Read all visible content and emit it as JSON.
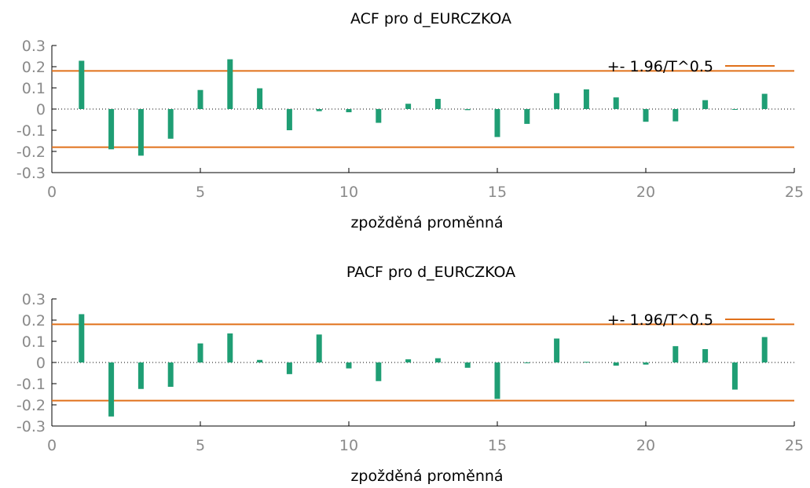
{
  "chart_data": [
    {
      "type": "bar",
      "title": "ACF pro d_EURCZKOA",
      "xlabel": "zpožděná proměnná",
      "ylabel": "",
      "xlim": [
        0,
        25
      ],
      "ylim": [
        -0.3,
        0.3
      ],
      "x_ticks": [
        "0",
        "5",
        "10",
        "15",
        "20",
        "25"
      ],
      "y_ticks": [
        "0.3",
        "0.2",
        "0.1",
        "0",
        "-0.1",
        "-0.2",
        "-0.3"
      ],
      "bar_color": "#1f9e74",
      "band_color": "#e0701a",
      "legend_label": "+- 1.96/T^0.5",
      "legend_position": "top-right",
      "confidence_band": 0.18,
      "lags": [
        1,
        2,
        3,
        4,
        5,
        6,
        7,
        8,
        9,
        10,
        11,
        12,
        13,
        14,
        15,
        16,
        17,
        18,
        19,
        20,
        21,
        22,
        23,
        24
      ],
      "values": [
        0.228,
        -0.19,
        -0.22,
        -0.14,
        0.09,
        0.235,
        0.098,
        -0.1,
        -0.01,
        -0.015,
        -0.065,
        0.025,
        0.048,
        -0.005,
        -0.132,
        -0.07,
        0.075,
        0.093,
        0.055,
        -0.06,
        -0.058,
        0.042,
        -0.003,
        0.072
      ]
    },
    {
      "type": "bar",
      "title": "PACF pro d_EURCZKOA",
      "xlabel": "zpožděná proměnná",
      "ylabel": "",
      "xlim": [
        0,
        25
      ],
      "ylim": [
        -0.3,
        0.3
      ],
      "x_ticks": [
        "0",
        "5",
        "10",
        "15",
        "20",
        "25"
      ],
      "y_ticks": [
        "0.3",
        "0.2",
        "0.1",
        "0",
        "-0.1",
        "-0.2",
        "-0.3"
      ],
      "bar_color": "#1f9e74",
      "band_color": "#e0701a",
      "legend_label": "+- 1.96/T^0.5",
      "legend_position": "top-right",
      "confidence_band": 0.18,
      "lags": [
        1,
        2,
        3,
        4,
        5,
        6,
        7,
        8,
        9,
        10,
        11,
        12,
        13,
        14,
        15,
        16,
        17,
        18,
        19,
        20,
        21,
        22,
        23,
        24
      ],
      "values": [
        0.228,
        -0.255,
        -0.125,
        -0.115,
        0.09,
        0.137,
        0.012,
        -0.055,
        0.132,
        -0.028,
        -0.088,
        0.015,
        0.02,
        -0.025,
        -0.172,
        -0.003,
        0.113,
        0.003,
        -0.015,
        -0.01,
        0.077,
        0.063,
        -0.128,
        0.12
      ]
    }
  ]
}
